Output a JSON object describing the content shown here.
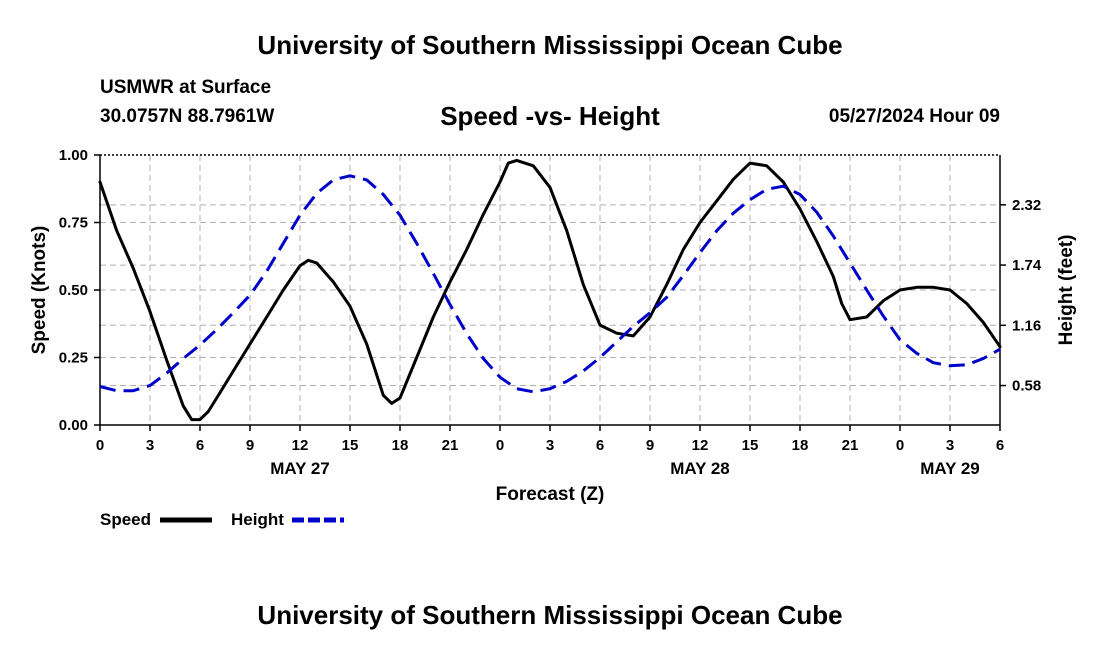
{
  "header": {
    "title": "University of Southern Mississippi Ocean Cube",
    "station": "USMWR at Surface",
    "coords": "30.0757N  88.7961W",
    "datetime": "05/27/2024 Hour 09",
    "footer_title": "University of Southern Mississippi Ocean Cube"
  },
  "colors": {
    "speed": "#000000",
    "height": "#0000cc",
    "grid": "#b0b0b0"
  },
  "chart_data": {
    "type": "line",
    "title": "Speed -vs- Height",
    "xlabel": "Forecast (Z)",
    "ylabel": "Speed (Knots)",
    "y2label": "Height (feet)",
    "xlim": [
      0,
      54
    ],
    "ylim": [
      0,
      1.0
    ],
    "y2lim": [
      0.2,
      2.8
    ],
    "x_ticks": [
      0,
      3,
      6,
      9,
      12,
      15,
      18,
      21,
      24,
      27,
      30,
      33,
      36,
      39,
      42,
      45,
      48,
      51,
      54
    ],
    "x_tick_labels": [
      "0",
      "3",
      "6",
      "9",
      "12",
      "15",
      "18",
      "21",
      "0",
      "3",
      "6",
      "9",
      "12",
      "15",
      "18",
      "21",
      "0",
      "3",
      "6"
    ],
    "date_labels": [
      {
        "x": 12,
        "label": "MAY 27"
      },
      {
        "x": 36,
        "label": "MAY 28"
      },
      {
        "x": 51,
        "label": "MAY 29"
      }
    ],
    "y_ticks": [
      0,
      0.25,
      0.5,
      0.75,
      1.0
    ],
    "y_tick_labels": [
      "0.00",
      "0.25",
      "0.50",
      "0.75",
      "1.00"
    ],
    "y2_ticks": [
      0.58,
      1.16,
      1.74,
      2.32
    ],
    "y2_tick_labels": [
      "0.58",
      "1.16",
      "1.74",
      "2.32"
    ],
    "grid": true,
    "legend_position": "bottom-left",
    "series": [
      {
        "name": "Speed",
        "axis": "left",
        "style": "solid",
        "x": [
          0,
          1,
          2,
          3,
          4,
          5,
          5.5,
          6,
          6.5,
          7,
          8,
          9,
          10,
          11,
          12,
          12.5,
          13,
          14,
          15,
          16,
          17,
          17.5,
          18,
          19,
          20,
          21,
          22,
          23,
          24,
          24.5,
          25,
          26,
          27,
          28,
          29,
          30,
          31,
          32,
          33,
          34,
          35,
          36,
          37,
          38,
          39,
          40,
          41,
          42,
          43,
          44,
          44.5,
          45,
          46,
          47,
          48,
          49,
          50,
          51,
          52,
          53,
          54
        ],
        "values": [
          0.9,
          0.72,
          0.58,
          0.42,
          0.24,
          0.07,
          0.02,
          0.02,
          0.05,
          0.1,
          0.2,
          0.3,
          0.4,
          0.5,
          0.59,
          0.61,
          0.6,
          0.53,
          0.44,
          0.3,
          0.11,
          0.08,
          0.1,
          0.25,
          0.4,
          0.53,
          0.65,
          0.78,
          0.9,
          0.97,
          0.98,
          0.96,
          0.88,
          0.72,
          0.52,
          0.37,
          0.34,
          0.33,
          0.4,
          0.52,
          0.65,
          0.75,
          0.83,
          0.91,
          0.97,
          0.96,
          0.9,
          0.8,
          0.68,
          0.55,
          0.45,
          0.39,
          0.4,
          0.46,
          0.5,
          0.51,
          0.51,
          0.5,
          0.45,
          0.38,
          0.29
        ]
      },
      {
        "name": "Height",
        "axis": "right",
        "style": "dashed",
        "x": [
          0,
          1,
          2,
          3,
          4,
          5,
          6,
          7,
          8,
          9,
          10,
          11,
          12,
          13,
          14,
          15,
          16,
          17,
          18,
          19,
          20,
          21,
          22,
          23,
          24,
          25,
          26,
          27,
          28,
          29,
          30,
          31,
          32,
          33,
          34,
          35,
          36,
          37,
          38,
          39,
          40,
          41,
          42,
          43,
          44,
          45,
          46,
          47,
          48,
          49,
          50,
          51,
          52,
          53,
          54
        ],
        "values": [
          0.57,
          0.53,
          0.53,
          0.58,
          0.7,
          0.84,
          0.97,
          1.12,
          1.28,
          1.45,
          1.68,
          1.95,
          2.22,
          2.43,
          2.56,
          2.6,
          2.56,
          2.42,
          2.22,
          1.95,
          1.66,
          1.36,
          1.08,
          0.84,
          0.66,
          0.55,
          0.52,
          0.55,
          0.62,
          0.72,
          0.85,
          1.0,
          1.15,
          1.28,
          1.43,
          1.64,
          1.86,
          2.07,
          2.24,
          2.37,
          2.47,
          2.5,
          2.42,
          2.25,
          2.02,
          1.76,
          1.5,
          1.25,
          1.02,
          0.89,
          0.8,
          0.77,
          0.78,
          0.84,
          0.93
        ]
      }
    ]
  }
}
